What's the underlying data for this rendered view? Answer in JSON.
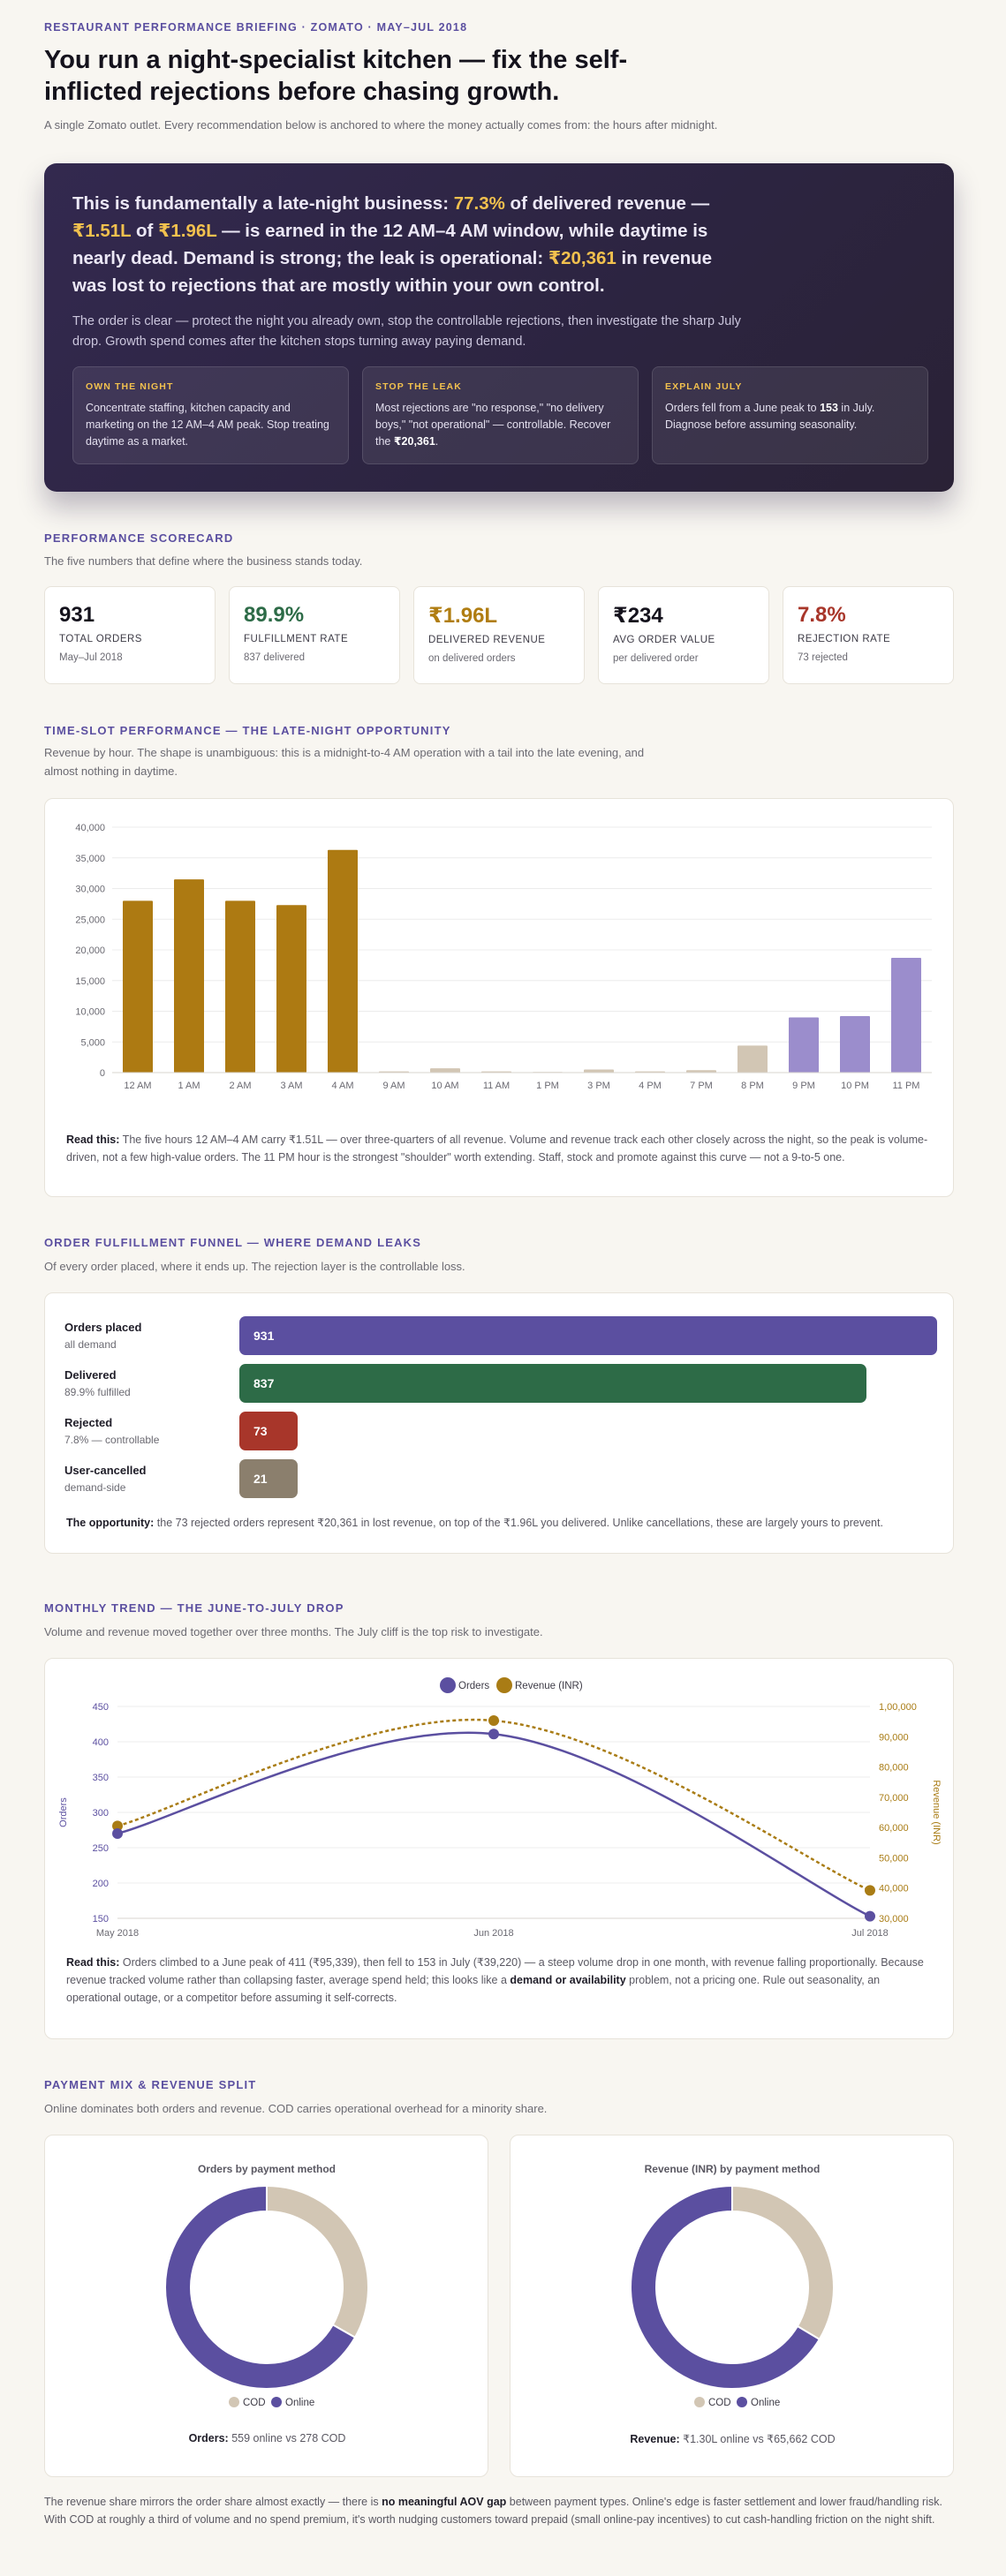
{
  "header": {
    "eyebrow": "RESTAURANT PERFORMANCE BRIEFING · ZOMATO · MAY–JUL 2018",
    "title": "You run a night-specialist kitchen — fix the self-inflicted rejections before chasing growth.",
    "lede": "A single Zomato outlet. Every recommendation below is anchored to where the money actually comes from: the hours after midnight."
  },
  "hero": {
    "head": {
      "p1": "This is fundamentally a late-night business: ",
      "h1": "77.3%",
      "p2": " of delivered revenue — ",
      "h2": "₹1.51L",
      "p3": " of ",
      "h3": "₹1.96L",
      "p4": " — is earned in the 12 AM–4 AM window, while daytime is nearly dead. Demand is strong; the leak is operational: ",
      "h4": "₹20,361",
      "p5": " in revenue was lost to rejections that are mostly within your own control."
    },
    "body": "The order is clear — protect the night you already own, stop the controllable rejections, then investigate the sharp July drop. Growth spend comes after the kitchen stops turning away paying demand.",
    "cards": [
      {
        "title": "OWN THE NIGHT",
        "text": "Concentrate staffing, kitchen capacity and marketing on the 12 AM–4 AM peak. Stop treating daytime as a market."
      },
      {
        "title": "STOP THE LEAK",
        "text_a": "Most rejections are \"no response,\" \"no delivery boys,\" \"not operational\" — controllable. Recover the ",
        "text_b": "₹20,361",
        "text_c": "."
      },
      {
        "title": "EXPLAIN JULY",
        "text_a": "Orders fell from a June peak to ",
        "text_b": "153",
        "text_c": " in July. Diagnose before assuming seasonality."
      }
    ]
  },
  "scorecard": {
    "title": "PERFORMANCE SCORECARD",
    "subtitle": "The five numbers that define where the business stands today.",
    "cards": [
      {
        "value": "931",
        "label": "TOTAL ORDERS",
        "sub": "May–Jul 2018",
        "tone": ""
      },
      {
        "value": "89.9%",
        "label": "FULFILLMENT RATE",
        "sub": "837 delivered",
        "tone": "green"
      },
      {
        "value": "₹1.96L",
        "label": "DELIVERED REVENUE",
        "sub": "on delivered orders",
        "tone": "gold"
      },
      {
        "value": "₹234",
        "label": "AVG ORDER VALUE",
        "sub": "per delivered order",
        "tone": ""
      },
      {
        "value": "7.8%",
        "label": "REJECTION RATE",
        "sub": "73 rejected",
        "tone": "red"
      }
    ]
  },
  "timeslot": {
    "title": "TIME-SLOT PERFORMANCE — THE LATE-NIGHT OPPORTUNITY",
    "subtitle": "Revenue by hour. The shape is unambiguous: this is a midnight-to-4 AM operation with a tail into the late evening, and almost nothing in daytime.",
    "read_label": "Read this:",
    "read_text": " The five hours 12 AM–4 AM carry ₹1.51L — over three-quarters of all revenue. Volume and revenue track each other closely across the night, so the peak is volume-driven, not a few high-value orders. The 11 PM hour is the strongest \"shoulder\" worth extending. Staff, stock and promote against this curve — not a 9-to-5 one."
  },
  "funnel": {
    "title": "ORDER FULFILLMENT FUNNEL — WHERE DEMAND LEAKS",
    "subtitle": "Of every order placed, where it ends up. The rejection layer is the controllable loss.",
    "rows": [
      {
        "label": "Orders placed",
        "sub": "all demand",
        "value": "931",
        "count": 931,
        "color": "#5b4fa0"
      },
      {
        "label": "Delivered",
        "sub": "89.9% fulfilled",
        "value": "837",
        "count": 837,
        "color": "#2d6b47"
      },
      {
        "label": "Rejected",
        "sub": "7.8% — controllable",
        "value": "73",
        "count": 73,
        "color": "#a8362a"
      },
      {
        "label": "User-cancelled",
        "sub": "demand-side",
        "value": "21",
        "count": 21,
        "color": "#8b7f6d"
      }
    ],
    "opp_label": "The opportunity:",
    "opp_text": " the 73 rejected orders represent ₹20,361 in lost revenue, on top of the ₹1.96L you delivered. Unlike cancellations, these are largely yours to prevent."
  },
  "monthly": {
    "title": "MONTHLY TREND — THE JUNE-TO-JULY DROP",
    "subtitle": "Volume and revenue moved together over three months. The July cliff is the top risk to investigate.",
    "read_label": "Read this:",
    "read_a": " Orders climbed to a June peak of 411 (₹95,339), then fell to 153 in July (₹39,220) — a steep volume drop in one month, with revenue falling proportionally. Because revenue tracked volume rather than collapsing faster, average spend held; this looks like a ",
    "read_b": "demand or availability",
    "read_c": " problem, not a pricing one. Rule out seasonality, an operational outage, or a competitor before assuming it self-corrects."
  },
  "payment": {
    "title": "PAYMENT MIX & REVENUE SPLIT",
    "subtitle": "Online dominates both orders and revenue. COD carries operational overhead for a minority share.",
    "orders_title": "Orders by payment method",
    "revenue_title": "Revenue (INR) by payment method",
    "legend_cod": "COD",
    "legend_online": "Online",
    "orders_caption_label": "Orders:",
    "orders_caption": " 559 online vs 278 COD",
    "revenue_caption_label": "Revenue:",
    "revenue_caption": " ₹1.30L online vs ₹65,662 COD",
    "footer_a": "The revenue share mirrors the order share almost exactly — there is ",
    "footer_b": "no meaningful AOV gap",
    "footer_c": " between payment types. Online's edge is faster settlement and lower fraud/handling risk. With COD at roughly a third of volume and no spend premium, it's worth nudging customers toward prepaid (small online-pay incentives) to cut cash-handling friction on the night shift."
  },
  "colors": {
    "night": "#ad7a12",
    "day": "#d2c6b4",
    "evening": "#9b8dcc",
    "orders": "#5b4fa0",
    "revenue": "#a97c15",
    "cod": "#d2c6b4",
    "online": "#5b4fa0"
  },
  "chart_data": [
    {
      "type": "bar",
      "title": "",
      "xlabel": "",
      "ylabel": "",
      "categories": [
        "12 AM",
        "1 AM",
        "2 AM",
        "3 AM",
        "4 AM",
        "9 AM",
        "10 AM",
        "11 AM",
        "1 PM",
        "3 PM",
        "4 PM",
        "7 PM",
        "8 PM",
        "9 PM",
        "10 PM",
        "11 PM"
      ],
      "values": [
        28000,
        31500,
        28000,
        27300,
        36300,
        200,
        700,
        200,
        100,
        500,
        200,
        400,
        4400,
        9000,
        9200,
        18700
      ],
      "groups": [
        "night",
        "night",
        "night",
        "night",
        "night",
        "day",
        "day",
        "day",
        "day",
        "day",
        "day",
        "day",
        "day",
        "evening",
        "evening",
        "evening"
      ],
      "yticks": [
        "0",
        "5,000",
        "10,000",
        "15,000",
        "20,000",
        "25,000",
        "30,000",
        "35,000",
        "40,000"
      ],
      "ylim": [
        0,
        40000
      ],
      "grid": true
    },
    {
      "type": "line",
      "title": "",
      "categories": [
        "May 2018",
        "Jun 2018",
        "Jul 2018"
      ],
      "series": [
        {
          "name": "Orders",
          "values": [
            270,
            411,
            153
          ],
          "axis": "left"
        },
        {
          "name": "Revenue (INR)",
          "values": [
            60500,
            95339,
            39220
          ],
          "axis": "right"
        }
      ],
      "ylabel": "Orders",
      "y2label": "Revenue (INR)",
      "ylim": [
        150,
        450
      ],
      "y2lim": [
        30000,
        100000
      ],
      "yticks": [
        "150",
        "200",
        "250",
        "300",
        "350",
        "400",
        "450"
      ],
      "y2ticks": [
        "30,000",
        "40,000",
        "50,000",
        "60,000",
        "70,000",
        "80,000",
        "90,000",
        "1,00,000"
      ],
      "legend": "top-center",
      "grid": true
    },
    {
      "type": "pie",
      "title": "Orders by payment method",
      "labels": [
        "COD",
        "Online"
      ],
      "values": [
        278,
        559
      ]
    },
    {
      "type": "pie",
      "title": "Revenue (INR) by payment method",
      "labels": [
        "COD",
        "Online"
      ],
      "values": [
        65662,
        130000
      ]
    }
  ]
}
